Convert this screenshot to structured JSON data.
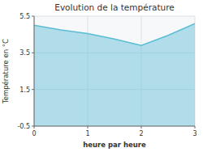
{
  "chart_data": {
    "type": "area",
    "title": "Evolution de la température",
    "x_label": "heure par heure",
    "y_label": "Température en °C",
    "x": [
      0,
      0.5,
      1.0,
      1.5,
      2.0,
      2.5,
      3.0
    ],
    "values": [
      5.0,
      4.75,
      4.55,
      4.25,
      3.9,
      4.45,
      5.1
    ],
    "color": "#5bbdd4",
    "xlim": [
      0,
      3
    ],
    "ylim": [
      -0.5,
      5.5
    ],
    "xticks": [
      0,
      1,
      2,
      3
    ],
    "yticks": [
      -0.5,
      1.5,
      3.5,
      5.5
    ],
    "grid": true
  }
}
